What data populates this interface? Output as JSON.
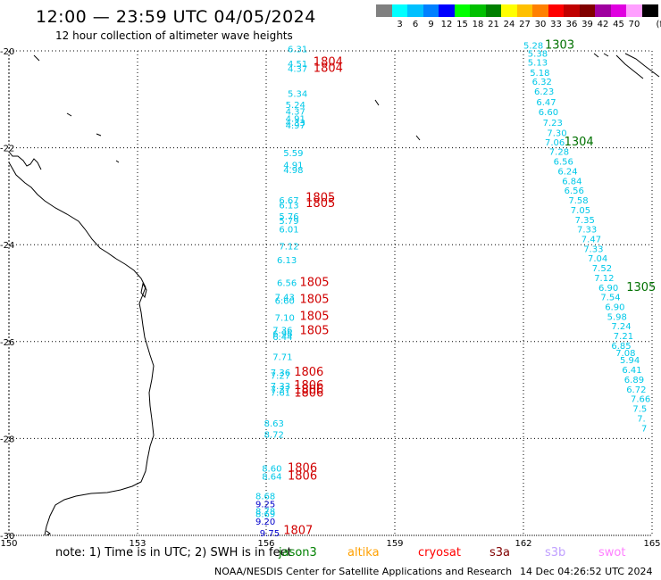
{
  "header": {
    "title": "12:00 — 23:59 UTC 04/05/2024",
    "subtitle": "12 hour collection of altimeter wave heights"
  },
  "legend": {
    "unit": "(ft)",
    "items": [
      {
        "label": "",
        "color": "#808080"
      },
      {
        "label": "3",
        "color": "#00ffff"
      },
      {
        "label": "6",
        "color": "#00c0ff"
      },
      {
        "label": "9",
        "color": "#0080ff"
      },
      {
        "label": "12",
        "color": "#0000ff"
      },
      {
        "label": "15",
        "color": "#00ff00"
      },
      {
        "label": "18",
        "color": "#00c000"
      },
      {
        "label": "21",
        "color": "#008000"
      },
      {
        "label": "24",
        "color": "#ffff00"
      },
      {
        "label": "27",
        "color": "#ffc000"
      },
      {
        "label": "30",
        "color": "#ff8000"
      },
      {
        "label": "33",
        "color": "#ff0000"
      },
      {
        "label": "36",
        "color": "#c00000"
      },
      {
        "label": "39",
        "color": "#800000"
      },
      {
        "label": "42",
        "color": "#a000a0"
      },
      {
        "label": "45",
        "color": "#e000e0"
      },
      {
        "label": "70",
        "color": "#ffa0ff"
      },
      {
        "label": "",
        "color": "#000000"
      }
    ]
  },
  "map": {
    "lat_labels": [
      "-20",
      "-22",
      "-24",
      "-26",
      "-28",
      "-30"
    ],
    "lon_labels": [
      "150",
      "153",
      "156",
      "159",
      "162",
      "165"
    ],
    "colors": {
      "cyan": "#00c8e8",
      "blue": "#0000cc",
      "red": "#d00000",
      "green": "#007000"
    },
    "tracks": [
      {
        "points": [
          {
            "lon": 156.5,
            "lat": -20.03,
            "v": "6.31",
            "c": "cyan"
          },
          {
            "lon": 156.5,
            "lat": -20.33,
            "v": "4.51",
            "c": "cyan"
          },
          {
            "lon": 156.5,
            "lat": -20.43,
            "v": "4.37",
            "c": "cyan"
          },
          {
            "lon": 156.5,
            "lat": -20.95,
            "v": "5.34",
            "c": "cyan"
          },
          {
            "lon": 156.45,
            "lat": -21.18,
            "v": "5.24",
            "c": "cyan"
          },
          {
            "lon": 156.45,
            "lat": -21.32,
            "v": "4.37",
            "c": "cyan"
          },
          {
            "lon": 156.45,
            "lat": -21.46,
            "v": "4.91",
            "c": "cyan"
          },
          {
            "lon": 156.45,
            "lat": -21.6,
            "v": "4.97",
            "c": "cyan"
          },
          {
            "lon": 156.45,
            "lat": -21.55,
            "v": "4.33",
            "c": "cyan"
          },
          {
            "lon": 156.4,
            "lat": -22.17,
            "v": "5.59",
            "c": "cyan"
          },
          {
            "lon": 156.4,
            "lat": -22.42,
            "v": "4.91",
            "c": "cyan"
          },
          {
            "lon": 156.4,
            "lat": -22.52,
            "v": "4.98",
            "c": "cyan"
          },
          {
            "lon": 156.3,
            "lat": -23.15,
            "v": "6.67",
            "c": "cyan"
          },
          {
            "lon": 156.3,
            "lat": -23.25,
            "v": "6.13",
            "c": "cyan"
          },
          {
            "lon": 156.3,
            "lat": -23.48,
            "v": "5.76",
            "c": "cyan"
          },
          {
            "lon": 156.3,
            "lat": -23.57,
            "v": "5.79",
            "c": "cyan"
          },
          {
            "lon": 156.3,
            "lat": -23.75,
            "v": "6.01",
            "c": "cyan"
          },
          {
            "lon": 156.3,
            "lat": -24.1,
            "v": "7.12",
            "c": "cyan"
          },
          {
            "lon": 156.25,
            "lat": -24.38,
            "v": "6.13",
            "c": "cyan"
          },
          {
            "lon": 156.25,
            "lat": -24.85,
            "v": "6.56",
            "c": "cyan"
          },
          {
            "lon": 156.2,
            "lat": -25.15,
            "v": "7.43",
            "c": "cyan"
          },
          {
            "lon": 156.2,
            "lat": -25.22,
            "v": "6.60",
            "c": "cyan"
          },
          {
            "lon": 156.2,
            "lat": -25.57,
            "v": "7.10",
            "c": "cyan"
          },
          {
            "lon": 156.15,
            "lat": -25.83,
            "v": "7.36",
            "c": "cyan"
          },
          {
            "lon": 156.15,
            "lat": -25.9,
            "v": "6.96",
            "c": "cyan"
          },
          {
            "lon": 156.15,
            "lat": -25.97,
            "v": "6.44",
            "c": "cyan"
          },
          {
            "lon": 156.15,
            "lat": -26.38,
            "v": "7.71",
            "c": "cyan"
          },
          {
            "lon": 156.1,
            "lat": -26.7,
            "v": "7.36",
            "c": "cyan"
          },
          {
            "lon": 156.1,
            "lat": -26.77,
            "v": "7.27",
            "c": "cyan"
          },
          {
            "lon": 156.1,
            "lat": -26.98,
            "v": "7.33",
            "c": "cyan"
          },
          {
            "lon": 156.1,
            "lat": -27.05,
            "v": "7.37",
            "c": "cyan"
          },
          {
            "lon": 156.1,
            "lat": -27.12,
            "v": "7.61",
            "c": "cyan"
          },
          {
            "lon": 155.95,
            "lat": -27.75,
            "v": "8.63",
            "c": "cyan"
          },
          {
            "lon": 155.95,
            "lat": -27.98,
            "v": "8.72",
            "c": "cyan"
          },
          {
            "lon": 155.9,
            "lat": -28.68,
            "v": "8.60",
            "c": "cyan"
          },
          {
            "lon": 155.9,
            "lat": -28.85,
            "v": "8.64",
            "c": "cyan"
          },
          {
            "lon": 155.75,
            "lat": -29.25,
            "v": "8.68",
            "c": "cyan"
          },
          {
            "lon": 155.75,
            "lat": -29.42,
            "v": "9.25",
            "c": "blue"
          },
          {
            "lon": 155.75,
            "lat": -29.57,
            "v": "8.78",
            "c": "cyan"
          },
          {
            "lon": 155.75,
            "lat": -29.62,
            "v": "8.69",
            "c": "cyan"
          },
          {
            "lon": 155.75,
            "lat": -29.78,
            "v": "9.20",
            "c": "blue"
          },
          {
            "lon": 155.85,
            "lat": -30.02,
            "v": "9.75",
            "c": "blue"
          }
        ],
        "passes": [
          {
            "lon": 157.1,
            "lat": -20.3,
            "v": "1804"
          },
          {
            "lon": 157.1,
            "lat": -20.43,
            "v": "1804"
          },
          {
            "lon": 156.92,
            "lat": -23.1,
            "v": "1805"
          },
          {
            "lon": 156.92,
            "lat": -23.22,
            "v": "1805"
          },
          {
            "lon": 156.78,
            "lat": -24.85,
            "v": "1805"
          },
          {
            "lon": 156.78,
            "lat": -25.2,
            "v": "1805"
          },
          {
            "lon": 156.78,
            "lat": -25.55,
            "v": "1805"
          },
          {
            "lon": 156.78,
            "lat": -25.85,
            "v": "1805"
          },
          {
            "lon": 156.65,
            "lat": -26.7,
            "v": "1806"
          },
          {
            "lon": 156.65,
            "lat": -26.98,
            "v": "1806"
          },
          {
            "lon": 156.65,
            "lat": -27.07,
            "v": "1806"
          },
          {
            "lon": 156.65,
            "lat": -27.14,
            "v": "1806"
          },
          {
            "lon": 156.5,
            "lat": -28.68,
            "v": "1806"
          },
          {
            "lon": 156.5,
            "lat": -28.85,
            "v": "1806"
          },
          {
            "lon": 156.4,
            "lat": -29.97,
            "v": "1807"
          }
        ]
      },
      {
        "points": [
          {
            "lon": 162.0,
            "lat": -19.95,
            "v": "5.28",
            "c": "cyan"
          },
          {
            "lon": 162.1,
            "lat": -20.12,
            "v": "5.38",
            "c": "cyan"
          },
          {
            "lon": 162.1,
            "lat": -20.3,
            "v": "5.13",
            "c": "cyan"
          },
          {
            "lon": 162.15,
            "lat": -20.52,
            "v": "5.18",
            "c": "cyan"
          },
          {
            "lon": 162.2,
            "lat": -20.7,
            "v": "6.32",
            "c": "cyan"
          },
          {
            "lon": 162.25,
            "lat": -20.9,
            "v": "6.23",
            "c": "cyan"
          },
          {
            "lon": 162.3,
            "lat": -21.12,
            "v": "6.47",
            "c": "cyan"
          },
          {
            "lon": 162.35,
            "lat": -21.33,
            "v": "6.60",
            "c": "cyan"
          },
          {
            "lon": 162.45,
            "lat": -21.55,
            "v": "7.23",
            "c": "cyan"
          },
          {
            "lon": 162.55,
            "lat": -21.76,
            "v": "7.30",
            "c": "cyan"
          },
          {
            "lon": 162.5,
            "lat": -21.95,
            "v": "7.06",
            "c": "cyan"
          },
          {
            "lon": 162.6,
            "lat": -22.15,
            "v": "7.28",
            "c": "cyan"
          },
          {
            "lon": 162.7,
            "lat": -22.35,
            "v": "6.56",
            "c": "cyan"
          },
          {
            "lon": 162.8,
            "lat": -22.55,
            "v": "6.24",
            "c": "cyan"
          },
          {
            "lon": 162.9,
            "lat": -22.75,
            "v": "6.84",
            "c": "cyan"
          },
          {
            "lon": 162.95,
            "lat": -22.95,
            "v": "6.56",
            "c": "cyan"
          },
          {
            "lon": 163.05,
            "lat": -23.15,
            "v": "7.58",
            "c": "cyan"
          },
          {
            "lon": 163.1,
            "lat": -23.35,
            "v": "7.05",
            "c": "cyan"
          },
          {
            "lon": 163.2,
            "lat": -23.55,
            "v": "7.35",
            "c": "cyan"
          },
          {
            "lon": 163.25,
            "lat": -23.75,
            "v": "7.33",
            "c": "cyan"
          },
          {
            "lon": 163.35,
            "lat": -23.95,
            "v": "7.47",
            "c": "cyan"
          },
          {
            "lon": 163.4,
            "lat": -24.15,
            "v": "7.33",
            "c": "cyan"
          },
          {
            "lon": 163.5,
            "lat": -24.35,
            "v": "7.04",
            "c": "cyan"
          },
          {
            "lon": 163.6,
            "lat": -24.55,
            "v": "7.52",
            "c": "cyan"
          },
          {
            "lon": 163.65,
            "lat": -24.75,
            "v": "7.12",
            "c": "cyan"
          },
          {
            "lon": 163.75,
            "lat": -24.95,
            "v": "6.90",
            "c": "cyan"
          },
          {
            "lon": 163.8,
            "lat": -25.15,
            "v": "7.54",
            "c": "cyan"
          },
          {
            "lon": 163.9,
            "lat": -25.35,
            "v": "6.90",
            "c": "cyan"
          },
          {
            "lon": 163.95,
            "lat": -25.55,
            "v": "5.98",
            "c": "cyan"
          },
          {
            "lon": 164.05,
            "lat": -25.75,
            "v": "7.24",
            "c": "cyan"
          },
          {
            "lon": 164.1,
            "lat": -25.95,
            "v": "7.21",
            "c": "cyan"
          },
          {
            "lon": 164.05,
            "lat": -26.15,
            "v": "6.85",
            "c": "cyan"
          },
          {
            "lon": 164.15,
            "lat": -26.3,
            "v": "7.08",
            "c": "cyan"
          },
          {
            "lon": 164.25,
            "lat": -26.45,
            "v": "5.94",
            "c": "cyan"
          },
          {
            "lon": 164.3,
            "lat": -26.65,
            "v": "6.41",
            "c": "cyan"
          },
          {
            "lon": 164.35,
            "lat": -26.85,
            "v": "6.89",
            "c": "cyan"
          },
          {
            "lon": 164.4,
            "lat": -27.05,
            "v": "6.72",
            "c": "cyan"
          },
          {
            "lon": 164.5,
            "lat": -27.25,
            "v": "7.66",
            "c": "cyan"
          },
          {
            "lon": 164.55,
            "lat": -27.45,
            "v": "7.5",
            "c": "cyan"
          },
          {
            "lon": 164.65,
            "lat": -27.65,
            "v": "7.",
            "c": "cyan"
          },
          {
            "lon": 164.75,
            "lat": -27.85,
            "v": "7",
            "c": "cyan"
          }
        ],
        "passes": [
          {
            "lon": 162.5,
            "lat": -19.95,
            "v": "1303"
          },
          {
            "lon": 162.95,
            "lat": -21.95,
            "v": "1304"
          },
          {
            "lon": 164.4,
            "lat": -24.95,
            "v": "1305"
          }
        ]
      }
    ]
  },
  "bottom": {
    "note": "note: 1) Time is in UTC; 2) SWH is in feet",
    "satellites": [
      {
        "name": "jason3",
        "color": "#008000"
      },
      {
        "name": "altika",
        "color": "#ffa000"
      },
      {
        "name": "cryosat",
        "color": "#ff0000"
      },
      {
        "name": "s3a",
        "color": "#800000"
      },
      {
        "name": "s3b",
        "color": "#c0a0ff"
      },
      {
        "name": "swot",
        "color": "#ff80ff"
      }
    ],
    "credit": "NOAA/NESDIS Center for Satellite Applications and Research",
    "timestamp": "14 Dec 04:26:52 UTC 2024"
  }
}
